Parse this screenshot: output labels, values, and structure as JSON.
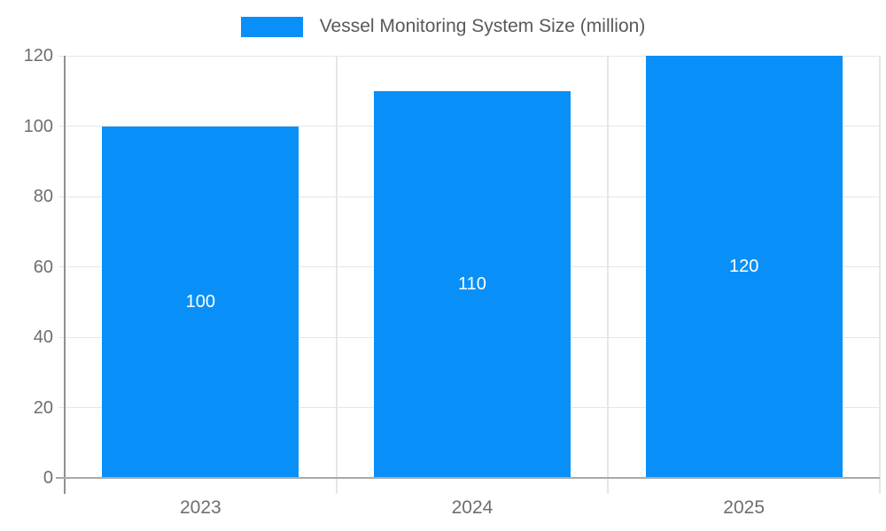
{
  "legend": {
    "label": "Vessel Monitoring System Size (million)"
  },
  "chart_data": {
    "type": "bar",
    "title": "Vessel Monitoring System Size (million)",
    "categories": [
      "2023",
      "2024",
      "2025"
    ],
    "values": [
      100,
      110,
      120
    ],
    "series": [
      {
        "name": "Vessel Monitoring System Size (million)",
        "values": [
          100,
          110,
          120
        ]
      }
    ],
    "data_labels": [
      "100",
      "110",
      "120"
    ],
    "xlabel": "",
    "ylabel": "",
    "ylim": [
      0,
      120
    ],
    "yticks": [
      0,
      20,
      40,
      60,
      80,
      100,
      120
    ],
    "grid": true,
    "legend_position": "top"
  },
  "colors": {
    "bar": "#0990f8",
    "data_label": "#ffffff",
    "legend_text": "#595959",
    "axis_text": "#6e6e6e",
    "gridline": "#e6e6e6",
    "y_axis_line": "#909090",
    "x_axis_line": "#a9a9a9",
    "background": "#ffffff"
  }
}
